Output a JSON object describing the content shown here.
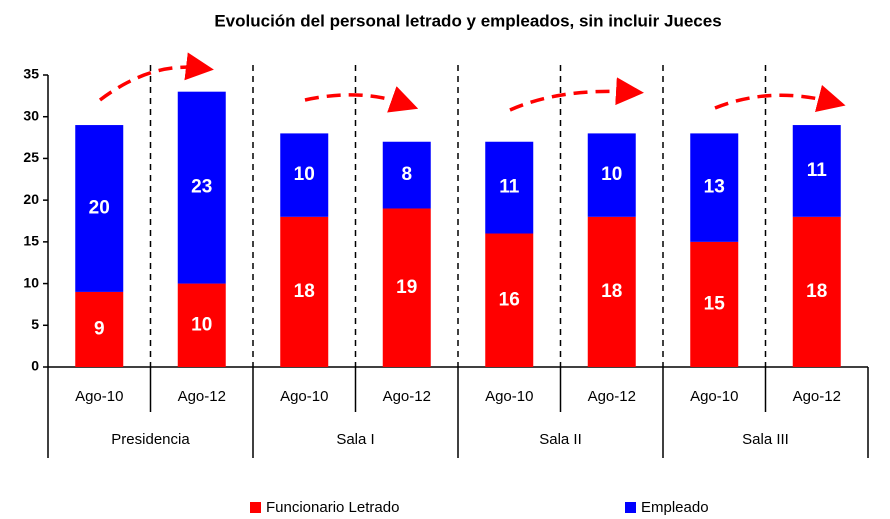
{
  "chart_data": {
    "type": "stacked_bar",
    "title": "Evolución del personal letrado y empleados, sin incluir Jueces",
    "categories": [
      "Ago-10",
      "Ago-12",
      "Ago-10",
      "Ago-12",
      "Ago-10",
      "Ago-12",
      "Ago-10",
      "Ago-12"
    ],
    "groups": [
      "Presidencia",
      "Sala I",
      "Sala II",
      "Sala III"
    ],
    "series": [
      {
        "name": "Funcionario Letrado",
        "color": "#ff0000",
        "values": [
          9,
          10,
          18,
          19,
          16,
          18,
          15,
          18
        ]
      },
      {
        "name": "Empleado",
        "color": "#0000ff",
        "values": [
          20,
          23,
          10,
          8,
          11,
          10,
          13,
          11
        ]
      }
    ],
    "ylim": [
      0,
      35
    ],
    "yticks": [
      0,
      5,
      10,
      15,
      20,
      25,
      30,
      35
    ],
    "grid": false
  }
}
